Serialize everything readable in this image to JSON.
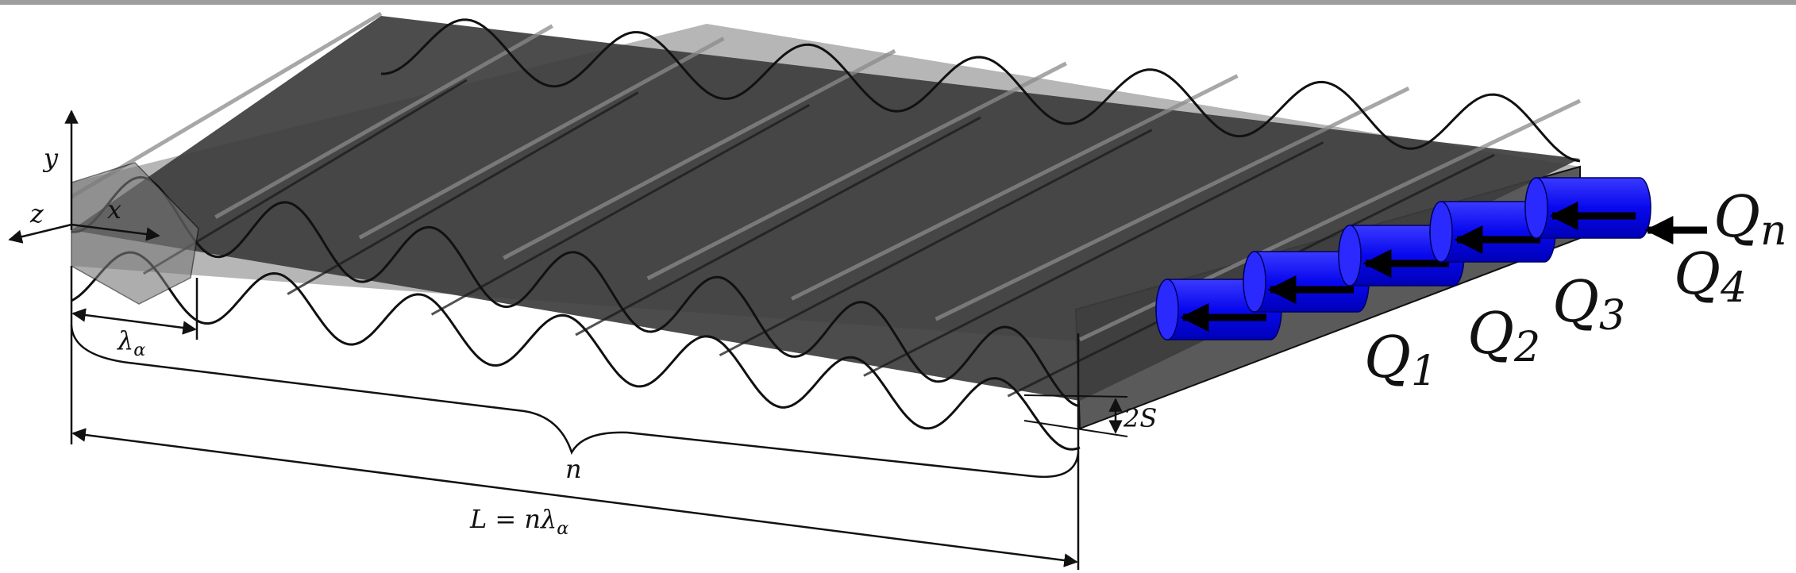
{
  "axes": {
    "y": "y",
    "x": "x",
    "z": "z"
  },
  "dims": {
    "wavelength": "λ",
    "wavelength_sub": "α",
    "count": "n",
    "length_lhs": "L = nλ",
    "length_sub": "α",
    "amplitude": "2S"
  },
  "flow_labels": [
    {
      "main": "Q",
      "sub": "1"
    },
    {
      "main": "Q",
      "sub": "2"
    },
    {
      "main": "Q",
      "sub": "3"
    },
    {
      "main": "Q",
      "sub": "4"
    },
    {
      "main": "Q",
      "sub": "n"
    }
  ],
  "colors": {
    "channel_fill": "#3d3d3d",
    "channel_light": "#6e6e6e",
    "outline": "#111111",
    "cylinder": "#0b0bf0",
    "cylinder_cap": "#2a2aff",
    "arrow": "#000000",
    "top_bar": "#9e9e9e"
  }
}
